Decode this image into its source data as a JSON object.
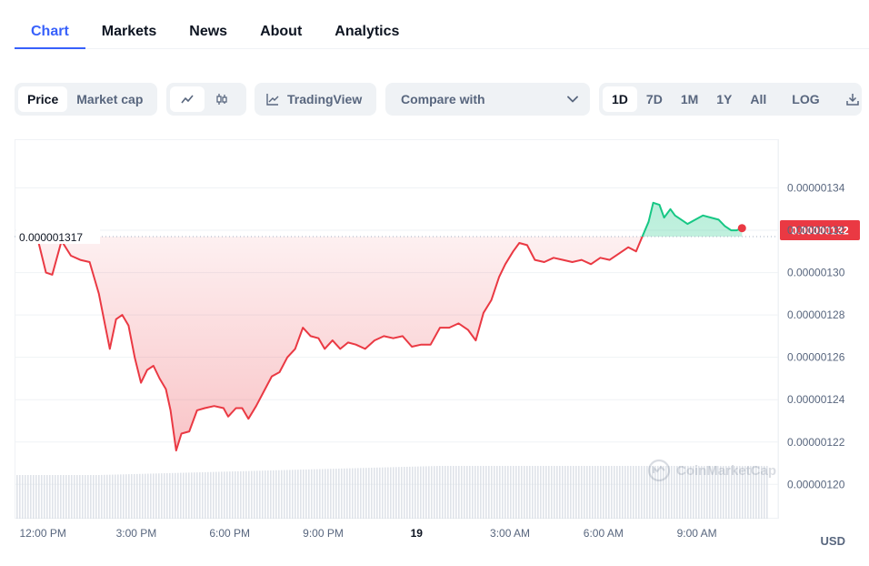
{
  "tabs": [
    "Chart",
    "Markets",
    "News",
    "About",
    "Analytics"
  ],
  "toolbar": {
    "metric_options": [
      "Price",
      "Market cap"
    ],
    "tradingview_label": "TradingView",
    "compare_label": "Compare with",
    "range_options": [
      "1D",
      "7D",
      "1M",
      "1Y",
      "All"
    ],
    "log_label": "LOG"
  },
  "watermark": "CoinMarketCap",
  "colors": {
    "up": "#16c784",
    "down": "#ea3943",
    "accent": "#3861fb"
  },
  "chart_data": {
    "type": "area",
    "title": "",
    "xlabel": "",
    "ylabel": "",
    "currency": "USD",
    "reference_price": 1.317e-06,
    "reference_label": "0.000001317",
    "current_price": 1.32e-06,
    "current_label": "0.00000132",
    "ylim": [
      1.1838e-06,
      1.363e-06
    ],
    "y_ticks": [
      1.2e-06,
      1.22e-06,
      1.24e-06,
      1.26e-06,
      1.28e-06,
      1.3e-06,
      1.32e-06,
      1.34e-06
    ],
    "y_tick_labels": [
      "0.00000120",
      "0.00000122",
      "0.00000124",
      "0.00000126",
      "0.00000128",
      "0.00000130",
      "0.00000132",
      "0.00000134"
    ],
    "x_ticks": [
      {
        "h": 12,
        "label": "12:00 PM"
      },
      {
        "h": 15,
        "label": "3:00 PM"
      },
      {
        "h": 18,
        "label": "6:00 PM"
      },
      {
        "h": 21,
        "label": "9:00 PM"
      },
      {
        "h": 24,
        "label": "19"
      },
      {
        "h": 27,
        "label": "3:00 AM"
      },
      {
        "h": 30,
        "label": "6:00 AM"
      },
      {
        "h": 33,
        "label": "9:00 AM"
      }
    ],
    "x_unit": "hours from 00:00 on day 18",
    "xlim": [
      11.09,
      35.61
    ],
    "points": [
      [
        11.85,
        1.315
      ],
      [
        12.1,
        1.3
      ],
      [
        12.3,
        1.299
      ],
      [
        12.6,
        1.315
      ],
      [
        12.9,
        1.308
      ],
      [
        13.2,
        1.306
      ],
      [
        13.5,
        1.305
      ],
      [
        13.8,
        1.29
      ],
      [
        14.0,
        1.275
      ],
      [
        14.15,
        1.264
      ],
      [
        14.35,
        1.278
      ],
      [
        14.55,
        1.28
      ],
      [
        14.75,
        1.275
      ],
      [
        14.95,
        1.26
      ],
      [
        15.15,
        1.248
      ],
      [
        15.35,
        1.254
      ],
      [
        15.55,
        1.256
      ],
      [
        15.75,
        1.25
      ],
      [
        15.95,
        1.245
      ],
      [
        16.1,
        1.235
      ],
      [
        16.28,
        1.216
      ],
      [
        16.45,
        1.224
      ],
      [
        16.7,
        1.225
      ],
      [
        16.95,
        1.235
      ],
      [
        17.2,
        1.236
      ],
      [
        17.5,
        1.237
      ],
      [
        17.8,
        1.236
      ],
      [
        17.95,
        1.232
      ],
      [
        18.2,
        1.236
      ],
      [
        18.4,
        1.236
      ],
      [
        18.6,
        1.231
      ],
      [
        18.85,
        1.237
      ],
      [
        19.1,
        1.244
      ],
      [
        19.35,
        1.251
      ],
      [
        19.6,
        1.253
      ],
      [
        19.85,
        1.26
      ],
      [
        20.1,
        1.264
      ],
      [
        20.35,
        1.274
      ],
      [
        20.6,
        1.27
      ],
      [
        20.85,
        1.269
      ],
      [
        21.05,
        1.264
      ],
      [
        21.3,
        1.268
      ],
      [
        21.55,
        1.264
      ],
      [
        21.8,
        1.267
      ],
      [
        22.05,
        1.266
      ],
      [
        22.35,
        1.264
      ],
      [
        22.65,
        1.268
      ],
      [
        22.95,
        1.27
      ],
      [
        23.25,
        1.269
      ],
      [
        23.55,
        1.27
      ],
      [
        23.85,
        1.265
      ],
      [
        24.15,
        1.266
      ],
      [
        24.45,
        1.266
      ],
      [
        24.75,
        1.274
      ],
      [
        25.05,
        1.274
      ],
      [
        25.35,
        1.276
      ],
      [
        25.65,
        1.273
      ],
      [
        25.9,
        1.268
      ],
      [
        26.15,
        1.281
      ],
      [
        26.4,
        1.287
      ],
      [
        26.65,
        1.298
      ],
      [
        26.85,
        1.304
      ],
      [
        27.1,
        1.31
      ],
      [
        27.3,
        1.314
      ],
      [
        27.55,
        1.313
      ],
      [
        27.8,
        1.306
      ],
      [
        28.1,
        1.305
      ],
      [
        28.4,
        1.307
      ],
      [
        28.7,
        1.306
      ],
      [
        29.0,
        1.305
      ],
      [
        29.3,
        1.306
      ],
      [
        29.6,
        1.304
      ],
      [
        29.9,
        1.307
      ],
      [
        30.2,
        1.306
      ],
      [
        30.5,
        1.309
      ],
      [
        30.8,
        1.312
      ],
      [
        31.05,
        1.31
      ],
      [
        31.25,
        1.317
      ],
      [
        31.45,
        1.324
      ],
      [
        31.6,
        1.333
      ],
      [
        31.8,
        1.332
      ],
      [
        31.95,
        1.326
      ],
      [
        32.15,
        1.33
      ],
      [
        32.3,
        1.327
      ],
      [
        32.5,
        1.325
      ],
      [
        32.7,
        1.323
      ],
      [
        32.95,
        1.325
      ],
      [
        33.2,
        1.327
      ],
      [
        33.45,
        1.326
      ],
      [
        33.7,
        1.325
      ],
      [
        33.9,
        1.322
      ],
      [
        34.1,
        1.32
      ],
      [
        34.28,
        1.32
      ],
      [
        34.45,
        1.321
      ]
    ],
    "value_scale": 1e-06
  }
}
